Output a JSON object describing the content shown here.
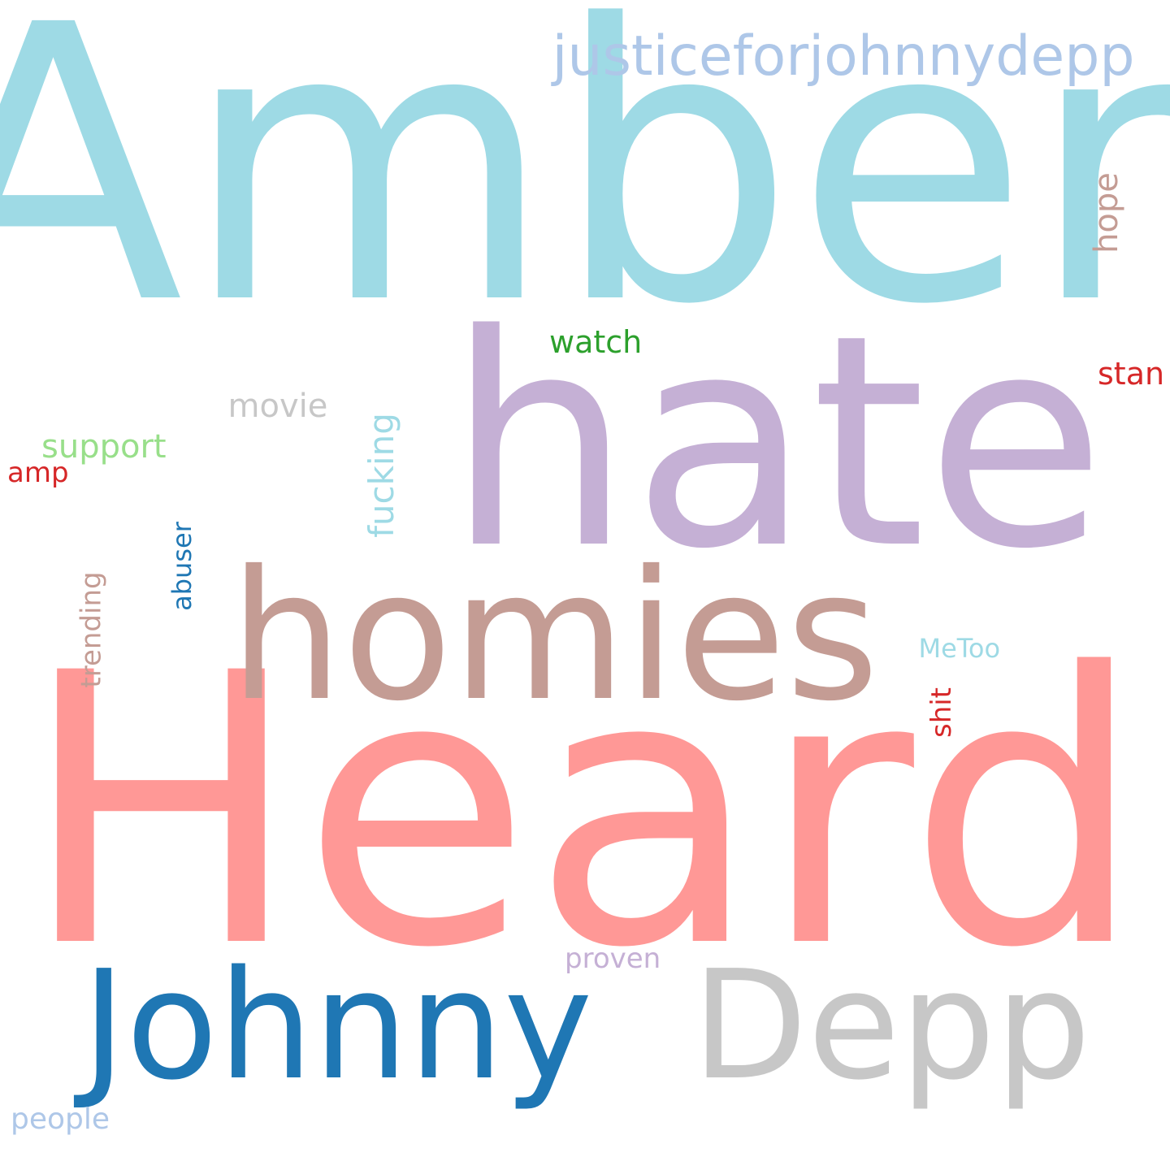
{
  "words": [
    {
      "key": "amber",
      "text": "Amber",
      "color": "#9edae5",
      "orientation": "horizontal"
    },
    {
      "key": "heard",
      "text": "Heard",
      "color": "#ff9896",
      "orientation": "horizontal"
    },
    {
      "key": "hate",
      "text": "hate",
      "color": "#c5b0d5",
      "orientation": "horizontal"
    },
    {
      "key": "homies",
      "text": "homies",
      "color": "#c49c94",
      "orientation": "horizontal"
    },
    {
      "key": "johnny",
      "text": "Johnny",
      "color": "#1f77b4",
      "orientation": "horizontal"
    },
    {
      "key": "depp",
      "text": "Depp",
      "color": "#c7c7c7",
      "orientation": "horizontal"
    },
    {
      "key": "justiceforjohnnydepp",
      "text": "justiceforjohnnydepp",
      "color": "#aec7e8",
      "orientation": "horizontal"
    },
    {
      "key": "hope",
      "text": "hope",
      "color": "#c49c94",
      "orientation": "vertical"
    },
    {
      "key": "watch",
      "text": "watch",
      "color": "#2ca02c",
      "orientation": "horizontal"
    },
    {
      "key": "stan",
      "text": "stan",
      "color": "#d62728",
      "orientation": "horizontal"
    },
    {
      "key": "movie",
      "text": "movie",
      "color": "#c7c7c7",
      "orientation": "horizontal"
    },
    {
      "key": "fucking",
      "text": "fucking",
      "color": "#9edae5",
      "orientation": "vertical"
    },
    {
      "key": "support",
      "text": "support",
      "color": "#98df8a",
      "orientation": "horizontal"
    },
    {
      "key": "amp",
      "text": "amp",
      "color": "#d62728",
      "orientation": "horizontal"
    },
    {
      "key": "abuser",
      "text": "abuser",
      "color": "#1f77b4",
      "orientation": "vertical"
    },
    {
      "key": "trending",
      "text": "trending",
      "color": "#c49c94",
      "orientation": "vertical"
    },
    {
      "key": "metoo",
      "text": "MeToo",
      "color": "#9edae5",
      "orientation": "horizontal"
    },
    {
      "key": "shit",
      "text": "shit",
      "color": "#d62728",
      "orientation": "vertical"
    },
    {
      "key": "proven",
      "text": "proven",
      "color": "#c5b0d5",
      "orientation": "horizontal"
    },
    {
      "key": "people",
      "text": "people",
      "color": "#aec7e8",
      "orientation": "horizontal"
    }
  ]
}
